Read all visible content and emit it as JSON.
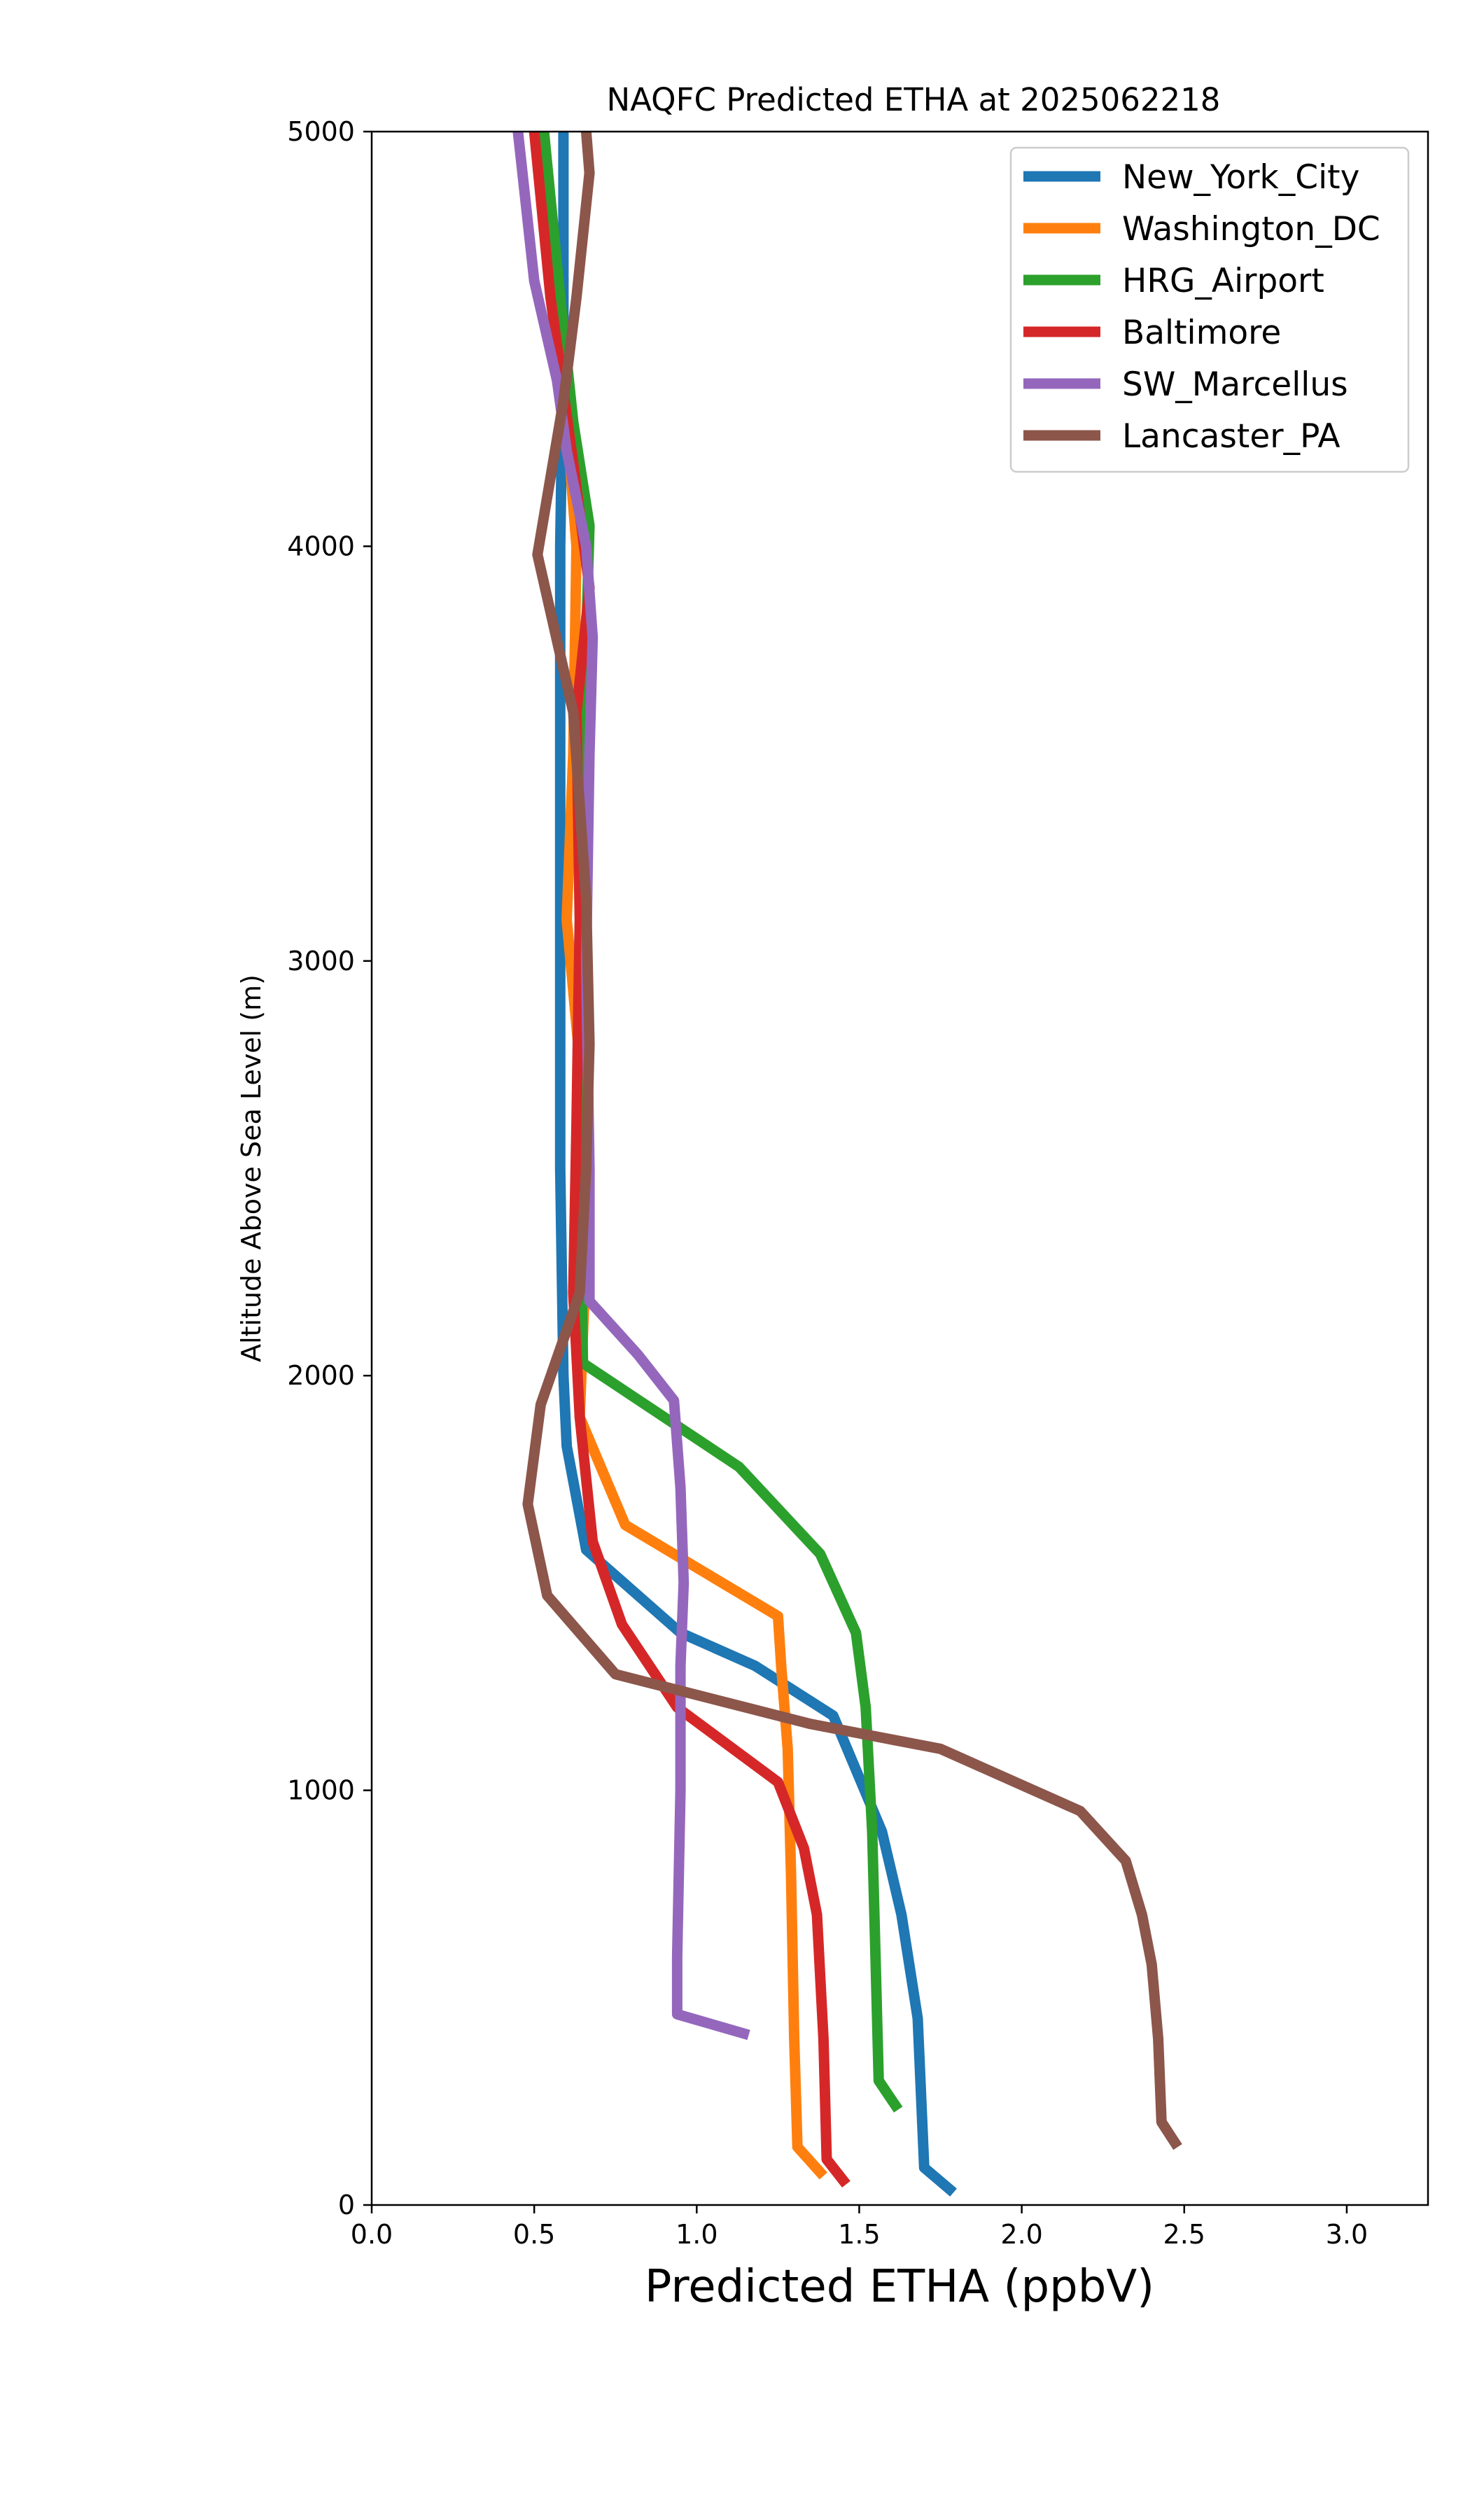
{
  "chart_data": {
    "type": "line",
    "title": "NAQFC Predicted ETHA at 2025062218",
    "xlabel": "Predicted ETHA (ppbV)",
    "ylabel": "Altitude Above Sea Level (m)",
    "xlim": [
      0.0,
      3.25
    ],
    "ylim": [
      0,
      5000
    ],
    "xticks": [
      "0.0",
      "0.5",
      "1.0",
      "1.5",
      "2.0",
      "2.5",
      "3.0"
    ],
    "xtick_values": [
      0.0,
      0.5,
      1.0,
      1.5,
      2.0,
      2.5,
      3.0
    ],
    "yticks": [
      "0",
      "1000",
      "2000",
      "3000",
      "4000",
      "5000"
    ],
    "ytick_values": [
      0,
      1000,
      2000,
      3000,
      4000,
      5000
    ],
    "grid": false,
    "legend_position": "top-right",
    "series": [
      {
        "name": "New_York_City",
        "color": "#1f77b4",
        "points": [
          [
            1.79,
            30
          ],
          [
            1.7,
            90
          ],
          [
            1.68,
            450
          ],
          [
            1.63,
            700
          ],
          [
            1.57,
            900
          ],
          [
            1.42,
            1180
          ],
          [
            1.18,
            1300
          ],
          [
            0.95,
            1380
          ],
          [
            0.66,
            1580
          ],
          [
            0.6,
            1830
          ],
          [
            0.59,
            2000
          ],
          [
            0.58,
            2500
          ],
          [
            0.58,
            3000
          ],
          [
            0.58,
            3500
          ],
          [
            0.58,
            4000
          ],
          [
            0.59,
            4500
          ],
          [
            0.59,
            4800
          ],
          [
            0.59,
            5000
          ]
        ]
      },
      {
        "name": "Washington_DC",
        "color": "#ff7f0e",
        "points": [
          [
            1.39,
            70
          ],
          [
            1.31,
            140
          ],
          [
            1.3,
            400
          ],
          [
            1.29,
            800
          ],
          [
            1.28,
            1100
          ],
          [
            1.26,
            1300
          ],
          [
            1.25,
            1420
          ],
          [
            0.78,
            1640
          ],
          [
            0.64,
            1900
          ],
          [
            0.65,
            2100
          ],
          [
            0.67,
            2500
          ],
          [
            0.6,
            3100
          ],
          [
            0.62,
            3500
          ],
          [
            0.63,
            4000
          ],
          [
            0.58,
            4500
          ],
          [
            0.54,
            4800
          ],
          [
            0.5,
            5000
          ]
        ]
      },
      {
        "name": "HRG_Airport",
        "color": "#2ca02c",
        "points": [
          [
            1.62,
            230
          ],
          [
            1.56,
            300
          ],
          [
            1.55,
            600
          ],
          [
            1.54,
            900
          ],
          [
            1.52,
            1200
          ],
          [
            1.49,
            1380
          ],
          [
            1.38,
            1570
          ],
          [
            1.13,
            1780
          ],
          [
            0.65,
            2030
          ],
          [
            0.64,
            2500
          ],
          [
            0.65,
            3000
          ],
          [
            0.65,
            3500
          ],
          [
            0.67,
            4050
          ],
          [
            0.62,
            4300
          ],
          [
            0.58,
            4600
          ],
          [
            0.53,
            5000
          ]
        ]
      },
      {
        "name": "Baltimore",
        "color": "#d62728",
        "points": [
          [
            1.46,
            50
          ],
          [
            1.4,
            110
          ],
          [
            1.39,
            400
          ],
          [
            1.37,
            700
          ],
          [
            1.33,
            860
          ],
          [
            1.25,
            1020
          ],
          [
            0.94,
            1200
          ],
          [
            0.77,
            1400
          ],
          [
            0.68,
            1600
          ],
          [
            0.64,
            1900
          ],
          [
            0.62,
            2200
          ],
          [
            0.63,
            2600
          ],
          [
            0.64,
            3100
          ],
          [
            0.63,
            3600
          ],
          [
            0.67,
            3900
          ],
          [
            0.62,
            4200
          ],
          [
            0.55,
            4600
          ],
          [
            0.5,
            5000
          ]
        ]
      },
      {
        "name": "SW_Marcellus",
        "color": "#9467bd",
        "points": [
          [
            1.16,
            410
          ],
          [
            0.94,
            460
          ],
          [
            0.94,
            600
          ],
          [
            0.95,
            1000
          ],
          [
            0.95,
            1300
          ],
          [
            0.96,
            1500
          ],
          [
            0.95,
            1730
          ],
          [
            0.93,
            1940
          ],
          [
            0.82,
            2050
          ],
          [
            0.67,
            2180
          ],
          [
            0.67,
            2500
          ],
          [
            0.66,
            3000
          ],
          [
            0.67,
            3500
          ],
          [
            0.68,
            3780
          ],
          [
            0.66,
            4000
          ],
          [
            0.6,
            4230
          ],
          [
            0.57,
            4400
          ],
          [
            0.5,
            4640
          ],
          [
            0.45,
            5000
          ]
        ]
      },
      {
        "name": "Lancaster_PA",
        "color": "#8c564b",
        "points": [
          [
            2.48,
            140
          ],
          [
            2.43,
            200
          ],
          [
            2.42,
            400
          ],
          [
            2.4,
            580
          ],
          [
            2.37,
            700
          ],
          [
            2.32,
            830
          ],
          [
            2.18,
            950
          ],
          [
            1.75,
            1100
          ],
          [
            1.35,
            1160
          ],
          [
            0.75,
            1280
          ],
          [
            0.54,
            1470
          ],
          [
            0.48,
            1690
          ],
          [
            0.52,
            1930
          ],
          [
            0.64,
            2200
          ],
          [
            0.66,
            2500
          ],
          [
            0.67,
            2800
          ],
          [
            0.66,
            3150
          ],
          [
            0.62,
            3600
          ],
          [
            0.51,
            3980
          ],
          [
            0.59,
            4350
          ],
          [
            0.63,
            4600
          ],
          [
            0.67,
            4900
          ],
          [
            0.66,
            5000
          ]
        ]
      }
    ]
  }
}
